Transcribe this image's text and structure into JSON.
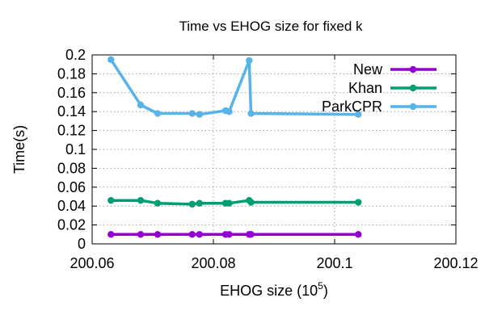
{
  "chart_data": {
    "type": "line",
    "title": "Time vs EHOG size for fixed k",
    "xlabel": "EHOG size (10",
    "xlabel_sup": "5",
    "xlabel_close": ")",
    "ylabel": "Time(s)",
    "xlim": [
      200.06,
      200.12
    ],
    "ylim": [
      0,
      0.2
    ],
    "xticks": [
      200.06,
      200.08,
      200.1,
      200.12
    ],
    "xtick_labels": [
      "200.06",
      "200.08",
      "200.1",
      "200.12"
    ],
    "yticks": [
      0,
      0.02,
      0.04,
      0.06,
      0.08,
      0.1,
      0.12,
      0.14,
      0.16,
      0.18,
      0.2
    ],
    "ytick_labels": [
      "0",
      "0.02",
      "0.04",
      "0.06",
      "0.08",
      "0.1",
      "0.12",
      "0.14",
      "0.16",
      "0.18",
      "0.2"
    ],
    "grid": true,
    "legend_position": "top-right",
    "x": [
      200.0631,
      200.068,
      200.0708,
      200.0765,
      200.0777,
      200.082,
      200.0826,
      200.0859,
      200.0862,
      200.1039
    ],
    "series": [
      {
        "name": "New",
        "color": "#9400d3",
        "values": [
          0.01,
          0.01,
          0.01,
          0.01,
          0.01,
          0.01,
          0.01,
          0.01,
          0.01,
          0.01
        ]
      },
      {
        "name": "Khan",
        "color": "#009e73",
        "values": [
          0.046,
          0.046,
          0.043,
          0.042,
          0.043,
          0.043,
          0.043,
          0.046,
          0.044,
          0.044
        ]
      },
      {
        "name": "ParkCPR",
        "color": "#56b4e9",
        "values": [
          0.195,
          0.147,
          0.138,
          0.138,
          0.137,
          0.141,
          0.14,
          0.194,
          0.138,
          0.137
        ]
      }
    ]
  }
}
